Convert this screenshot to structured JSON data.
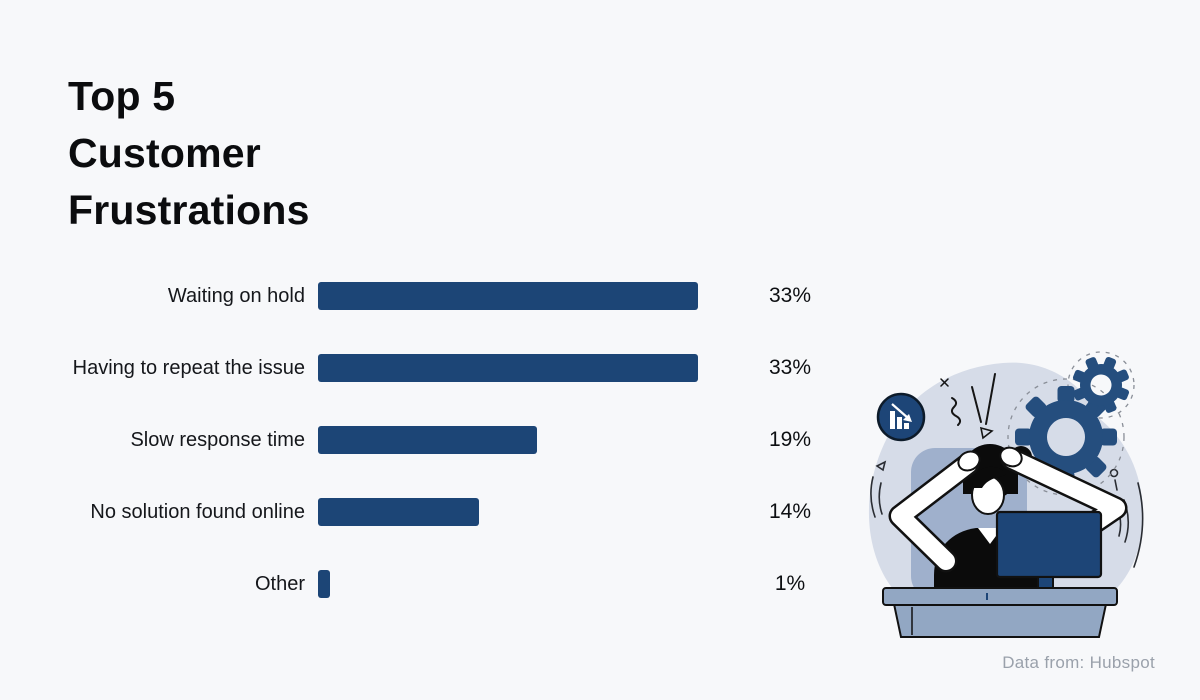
{
  "page": {
    "background_color": "#f7f8fa"
  },
  "title": {
    "text": "Top 5 Customer Frustrations",
    "lines": [
      "Top 5",
      "Customer",
      "Frustrations"
    ]
  },
  "chart_data": {
    "type": "bar",
    "orientation": "horizontal",
    "title": "Top 5 Customer Frustrations",
    "categories": [
      "Waiting on hold",
      "Having to repeat the issue",
      "Slow response time",
      "No solution found online",
      "Other"
    ],
    "values": [
      33,
      33,
      19,
      14,
      1
    ],
    "value_labels": [
      "33%",
      "33%",
      "19%",
      "14%",
      "1%"
    ],
    "xlim": [
      0,
      33
    ],
    "grid": false,
    "legend": false,
    "bar_color": "#1c4576",
    "label_color": "#15171b",
    "value_color": "#0d0f12"
  },
  "source": {
    "text": "Data from: Hubspot",
    "color": "#9aa1ab"
  },
  "illustration": {
    "description": "Frustrated person holding head in front of computer monitor at a desk, with gears, stress marks and a declining bar-chart badge",
    "colors": {
      "navy": "#1d4577",
      "gear_navy": "#254e7e",
      "blob": "#d6dce8",
      "chair": "#9fb0cc",
      "desk": "#92a7c3",
      "ink": "#111111"
    },
    "icon_names": [
      "declining-bar-chart-badge-icon",
      "gear-icon-large",
      "gear-icon-small",
      "stress-marks-icon",
      "monitor-icon",
      "desk-icon",
      "frustrated-person"
    ]
  }
}
